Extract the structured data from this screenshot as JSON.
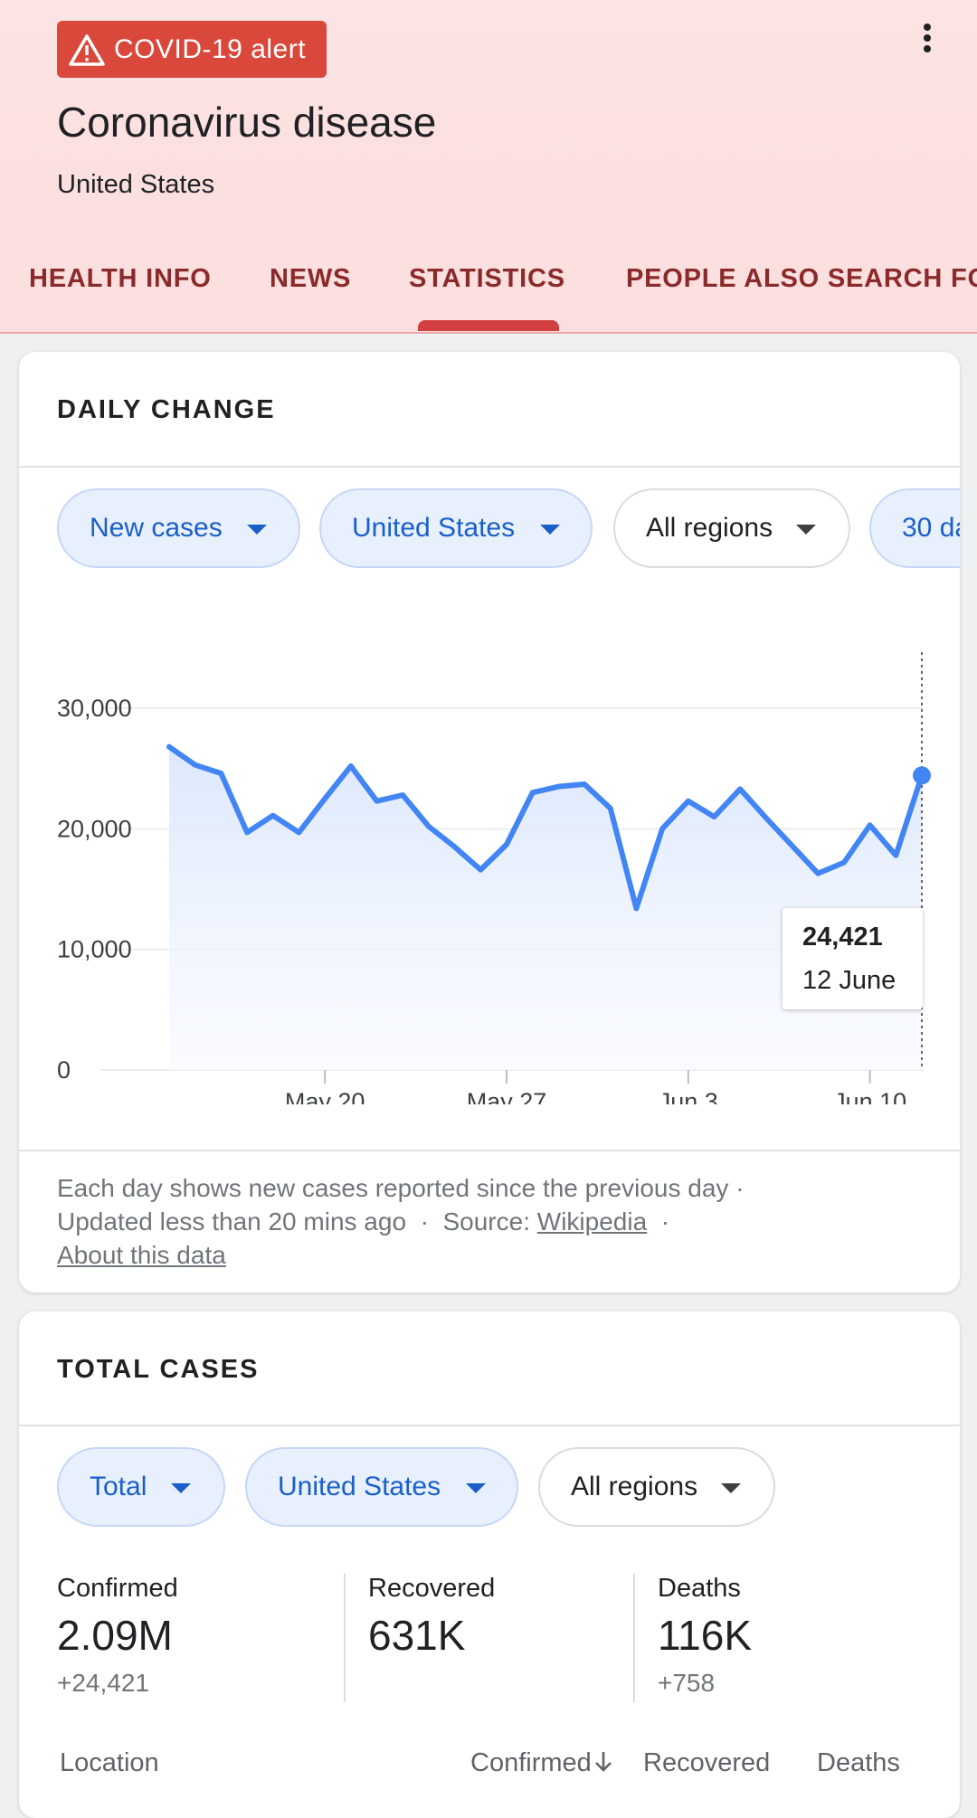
{
  "header": {
    "alert_label": "COVID-19 alert",
    "alert_icon": "warning-icon",
    "title": "Coronavirus disease",
    "subtitle": "United States",
    "tabs": [
      "HEALTH INFO",
      "NEWS",
      "STATISTICS",
      "PEOPLE ALSO SEARCH FO"
    ],
    "active_tab": "STATISTICS",
    "bg_color": "#fde3e3",
    "accent_color": "#d23f3f"
  },
  "daily": {
    "title": "DAILY CHANGE",
    "chips": [
      "New cases",
      "United States",
      "All regions",
      "30 da"
    ],
    "tooltip_value": "24,421",
    "tooltip_date": "12 June",
    "footnote_line1": "Each day shows new cases reported since the previous day ·",
    "footnote_updated": "Updated less than 20 mins ago",
    "footnote_source_label": "Source:",
    "footnote_source_link": "Wikipedia",
    "footnote_about": "About this data"
  },
  "chart_data": {
    "type": "area",
    "x": [
      "May 14",
      "May 15",
      "May 16",
      "May 17",
      "May 18",
      "May 19",
      "May 20",
      "May 21",
      "May 22",
      "May 23",
      "May 24",
      "May 25",
      "May 26",
      "May 27",
      "May 28",
      "May 29",
      "May 30",
      "May 31",
      "Jun 1",
      "Jun 2",
      "Jun 3",
      "Jun 4",
      "Jun 5",
      "Jun 6",
      "Jun 7",
      "Jun 8",
      "Jun 9",
      "Jun 10",
      "Jun 11",
      "Jun 12"
    ],
    "values": [
      26800,
      25300,
      24600,
      19700,
      21100,
      19700,
      22500,
      25200,
      22300,
      22800,
      20200,
      18500,
      16600,
      18700,
      23000,
      23500,
      23700,
      21700,
      13400,
      20000,
      22300,
      21000,
      23300,
      20900,
      18600,
      16300,
      17200,
      20300,
      17800,
      24421
    ],
    "x_tick_labels": [
      "May 20",
      "May 27",
      "Jun 3",
      "Jun 10"
    ],
    "y_tick_labels": [
      "0",
      "10,000",
      "20,000",
      "30,000"
    ],
    "ylim": [
      0,
      30000
    ],
    "grid": true,
    "line_color": "#4285f4"
  },
  "total": {
    "title": "TOTAL CASES",
    "chips": [
      "Total",
      "United States",
      "All regions"
    ],
    "stats": [
      {
        "label": "Confirmed",
        "value": "2.09M",
        "delta": "+24,421"
      },
      {
        "label": "Recovered",
        "value": "631K",
        "delta": ""
      },
      {
        "label": "Deaths",
        "value": "116K",
        "delta": "+758"
      }
    ],
    "table_headers": [
      "Location",
      "Confirmed",
      "Recovered",
      "Deaths"
    ],
    "sort_icon": "arrow-down-icon"
  }
}
